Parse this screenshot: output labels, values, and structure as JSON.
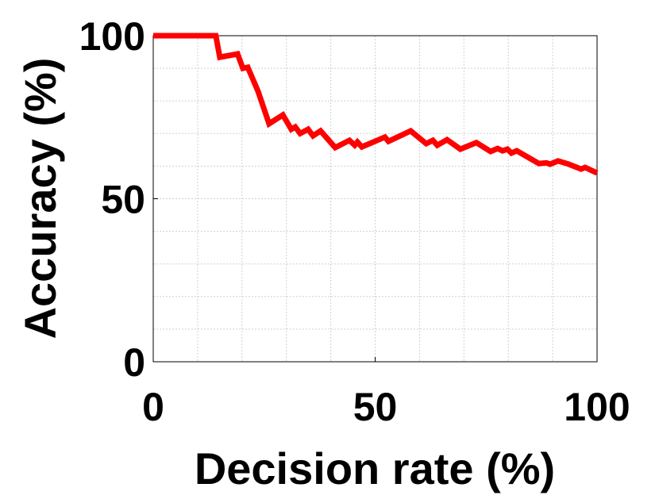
{
  "chart_data": {
    "type": "line",
    "xlabel": "Decision rate (%)",
    "ylabel": "Accuracy (%)",
    "x": [
      0,
      14.1,
      15,
      19,
      20.2,
      21.3,
      23.6,
      26.1,
      29.2,
      31.1,
      32,
      33.1,
      34.9,
      36,
      37.7,
      41,
      44.2,
      45.4,
      46,
      47,
      52.2,
      53,
      58,
      61.5,
      63,
      64,
      66.2,
      69.2,
      72.8,
      76,
      77.6,
      78.7,
      79.8,
      80.7,
      81.9,
      86.9,
      88.6,
      89.4,
      91.2,
      93.6,
      96.4,
      97.3,
      100
    ],
    "series": [
      {
        "color": "#ff0000",
        "values": [
          100,
          100,
          93.4,
          94.4,
          90,
          90.3,
          83,
          73,
          75.7,
          71.3,
          72,
          70,
          71.3,
          69.3,
          70.8,
          65.7,
          67.9,
          66.4,
          67.4,
          65.9,
          68.9,
          67.6,
          70.8,
          66.9,
          67.9,
          66.4,
          68.1,
          65.2,
          67.2,
          64.5,
          65.4,
          64.7,
          65.2,
          64,
          64.7,
          60.8,
          61,
          60.6,
          61.6,
          60.6,
          59.1,
          59.6,
          57.9
        ]
      }
    ],
    "xlim": [
      0,
      100
    ],
    "ylim": [
      0,
      100
    ],
    "xticks": [
      0,
      50,
      100
    ],
    "yticks": [
      0,
      50,
      100
    ],
    "xminorticks": [
      10,
      20,
      30,
      40,
      60,
      70,
      80,
      90
    ],
    "yminorticks": [
      10,
      20,
      30,
      40,
      60,
      70,
      80,
      90
    ],
    "grid": true
  }
}
